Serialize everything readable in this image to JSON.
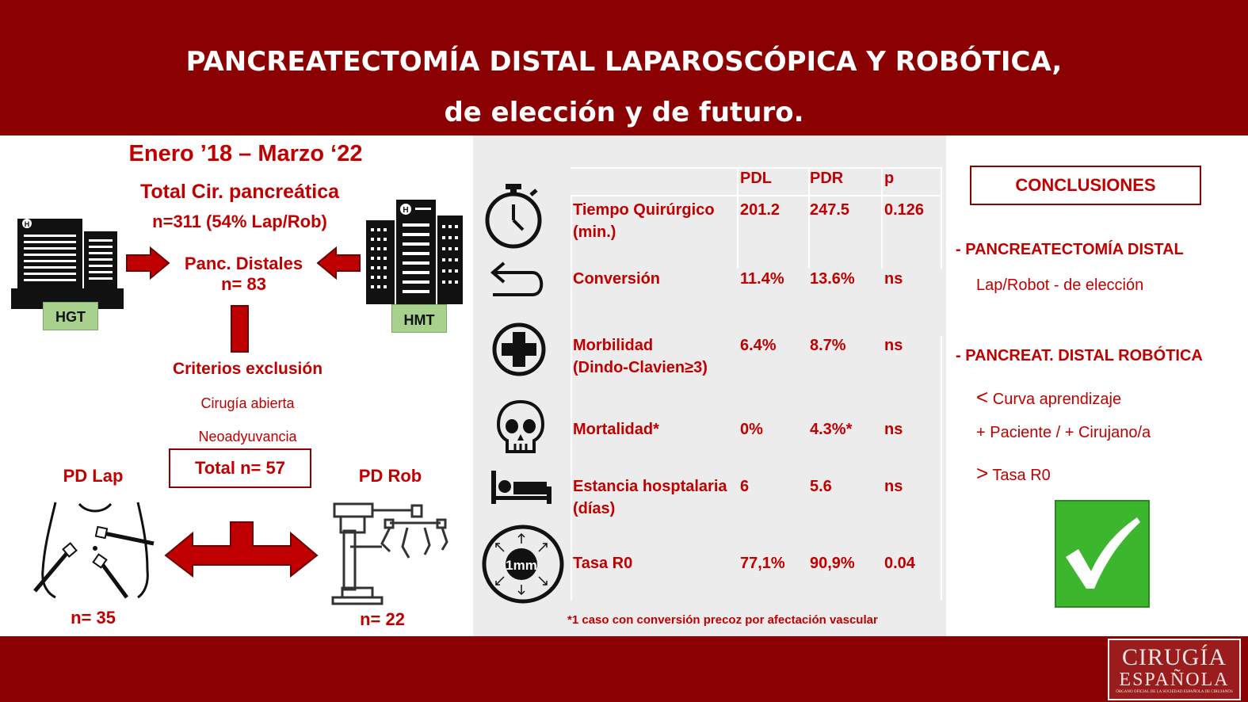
{
  "header": {
    "title_line1": "PANCREATECTOMÍA DISTAL LAPAROSCÓPICA Y ROBÓTICA,",
    "title_line2": "de elección y de futuro."
  },
  "left": {
    "period": "Enero ’18 – Marzo ‘22",
    "total_title": "Total Cir. pancreática",
    "total_n": "n=311 (54% Lap/Rob)",
    "distal_label": "Panc. Distales",
    "distal_n": "n= 83",
    "hospital_left": "HGT",
    "hospital_right": "HMT",
    "exclusion_title": "Criterios exclusión",
    "exclusion_items": [
      "Cirugía abierta",
      "Neoadyuvancia"
    ],
    "total_box": "Total n= 57",
    "lap_label": "PD Lap",
    "rob_label": "PD Rob",
    "lap_n": "n= 35",
    "rob_n": "n= 22"
  },
  "table": {
    "columns": [
      "PDL",
      "PDR",
      "p"
    ],
    "rows": [
      {
        "icon": "stopwatch-icon",
        "label1": "Tiempo Quirúrgico",
        "label2": "(min.)",
        "pdl": "201.2",
        "pdr": "247.5",
        "p": "0.126"
      },
      {
        "icon": "conversion-arrow-icon",
        "label1": "Conversión",
        "label2": "",
        "pdl": "11.4%",
        "pdr": "13.6%",
        "p": "ns"
      },
      {
        "icon": "medical-cross-icon",
        "label1": "Morbilidad",
        "label2": "(Dindo-Clavien≥3)",
        "pdl": "6.4%",
        "pdr": "8.7%",
        "p": "ns"
      },
      {
        "icon": "skull-icon",
        "label1": "Mortalidad*",
        "label2": "",
        "pdl": "0%",
        "pdr": "4.3%*",
        "p": "ns"
      },
      {
        "icon": "hospital-bed-icon",
        "label1": "Estancia hosptalaria",
        "label2": "(días)",
        "pdl": "6",
        "pdr": "5.6",
        "p": "ns"
      },
      {
        "icon": "margin-1mm-icon",
        "label1": "Tasa R0",
        "label2": "",
        "pdl": "77,1%",
        "pdr": "90,9%",
        "p": "0.04"
      }
    ],
    "margin_icon_text": "1mm",
    "footnote": "*1 caso con conversión precoz por afectación vascular"
  },
  "conclusions": {
    "title": "CONCLUSIONES",
    "h1": "- PANCREATECTOMÍA DISTAL",
    "h1_item": "Lap/Robot - de elección",
    "h2": "- PANCREAT. DISTAL ROBÓTICA",
    "items": [
      {
        "sym": "<",
        "text": "Curva aprendizaje"
      },
      {
        "sym": "",
        "text": "+ Paciente / + Cirujano/a"
      },
      {
        "sym": ">",
        "text": "Tasa R0"
      }
    ],
    "check_color": "#3cb62d"
  },
  "logo": {
    "line1": "CIRUGÍA",
    "line2": "ESPAÑOLA",
    "line3": "ÓRGANO OFICIAL DE LA SOCIEDAD ESPAÑOLA DE CIRUJANOS"
  },
  "colors": {
    "brand": "#8b0000",
    "accent": "#c00000",
    "hospital_label": "#a9d18e"
  }
}
